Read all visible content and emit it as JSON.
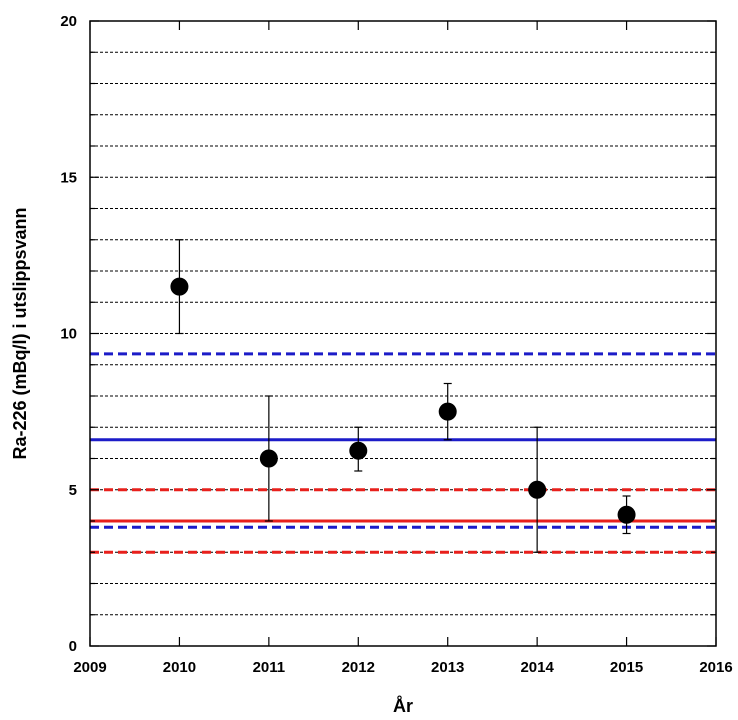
{
  "chart_data": {
    "type": "scatter",
    "title": "",
    "xlabel": "År",
    "ylabel": "Ra-226 (mBq/l) i utslippsvann",
    "xlim": [
      2009,
      2016
    ],
    "ylim": [
      0,
      20
    ],
    "x_ticks": [
      "2009",
      "2010",
      "2011",
      "2012",
      "2013",
      "2014",
      "2015",
      "2016"
    ],
    "y_ticks": [
      "0",
      "5",
      "10",
      "15",
      "20"
    ],
    "grid": "horizontal-dashed",
    "series": [
      {
        "points": [
          {
            "x": 2010,
            "y": 11.5,
            "err_low": 10.0,
            "err_high": 13.0
          },
          {
            "x": 2011,
            "y": 6.0,
            "err_low": 4.0,
            "err_high": 8.0
          },
          {
            "x": 2012,
            "y": 6.25,
            "err_low": 5.6,
            "err_high": 7.0
          },
          {
            "x": 2013,
            "y": 7.5,
            "err_low": 6.6,
            "err_high": 8.4
          },
          {
            "x": 2014,
            "y": 5.0,
            "err_low": 3.0,
            "err_high": 7.0
          },
          {
            "x": 2015,
            "y": 4.2,
            "err_low": 3.6,
            "err_high": 4.8
          }
        ],
        "color": "#000000"
      }
    ],
    "reference_lines": [
      {
        "y": 6.6,
        "color": "#1c1cc8",
        "style": "solid"
      },
      {
        "y": 9.35,
        "color": "#1c1cc8",
        "style": "dashed"
      },
      {
        "y": 3.8,
        "color": "#1c1cc8",
        "style": "dashed"
      },
      {
        "y": 4.0,
        "color": "#e8201c",
        "style": "solid"
      },
      {
        "y": 5.0,
        "color": "#e8201c",
        "style": "dashed"
      },
      {
        "y": 3.0,
        "color": "#e8201c",
        "style": "dashed"
      }
    ]
  }
}
